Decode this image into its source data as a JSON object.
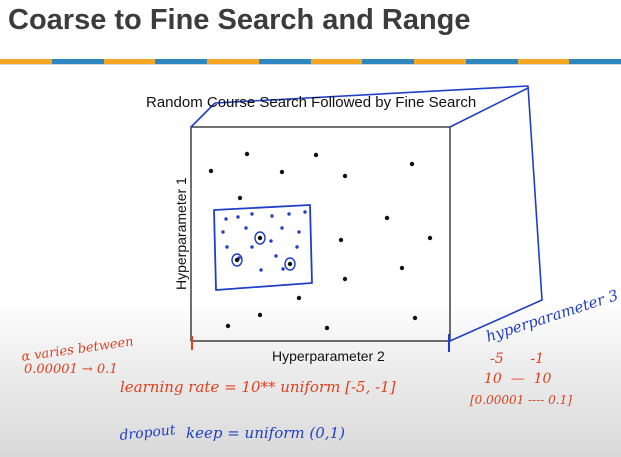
{
  "slide": {
    "title": "Coarse to Fine Search and Range",
    "stripe_colors": [
      "#f5a623",
      "#2e86c1",
      "#f5a623",
      "#2e86c1",
      "#f5a623",
      "#2e86c1",
      "#f5a623",
      "#2e86c1",
      "#f5a623",
      "#2e86c1",
      "#f5a623",
      "#2e86c1"
    ]
  },
  "plot": {
    "title": "Random Course Search Followed by Fine Search",
    "xlabel": "Hyperparameter 2",
    "ylabel": "Hyperparameter 1",
    "coarse_points": [
      [
        211,
        171
      ],
      [
        247,
        154
      ],
      [
        282,
        172
      ],
      [
        316,
        155
      ],
      [
        345,
        176
      ],
      [
        412,
        164
      ],
      [
        240,
        198
      ],
      [
        387,
        218
      ],
      [
        341,
        240
      ],
      [
        430,
        238
      ],
      [
        345,
        279
      ],
      [
        402,
        268
      ],
      [
        299,
        298
      ],
      [
        260,
        315
      ],
      [
        228,
        326
      ],
      [
        327,
        328
      ],
      [
        415,
        318
      ]
    ],
    "fine_points": [
      [
        226,
        219
      ],
      [
        238,
        217
      ],
      [
        252,
        214
      ],
      [
        272,
        216
      ],
      [
        289,
        214
      ],
      [
        305,
        212
      ],
      [
        223,
        232
      ],
      [
        246,
        228
      ],
      [
        282,
        228
      ],
      [
        299,
        232
      ],
      [
        227,
        247
      ],
      [
        252,
        247
      ],
      [
        271,
        241
      ],
      [
        297,
        247
      ],
      [
        239,
        258
      ],
      [
        276,
        256
      ],
      [
        261,
        270
      ],
      [
        283,
        269
      ]
    ],
    "circled_points": [
      [
        260,
        238
      ],
      [
        237,
        260
      ],
      [
        290,
        264
      ]
    ],
    "colors": {
      "ink": "#111111",
      "blue": "#1f3fc8",
      "red": "#e0401f"
    }
  },
  "annotations": {
    "z_axis": "hyperparameter 3",
    "alpha_line1": "α varies between",
    "alpha_line2": "0.00001 → 0.1",
    "learning_rate": "learning rate = 10** uniform [-5, -1]",
    "range_exponents": "-5      -1",
    "range_base": "10  —  10",
    "range_values": "[0.00001 ---- 0.1]",
    "dropout_label": "dropout",
    "keep_prob": "keep = uniform (0,1)"
  }
}
